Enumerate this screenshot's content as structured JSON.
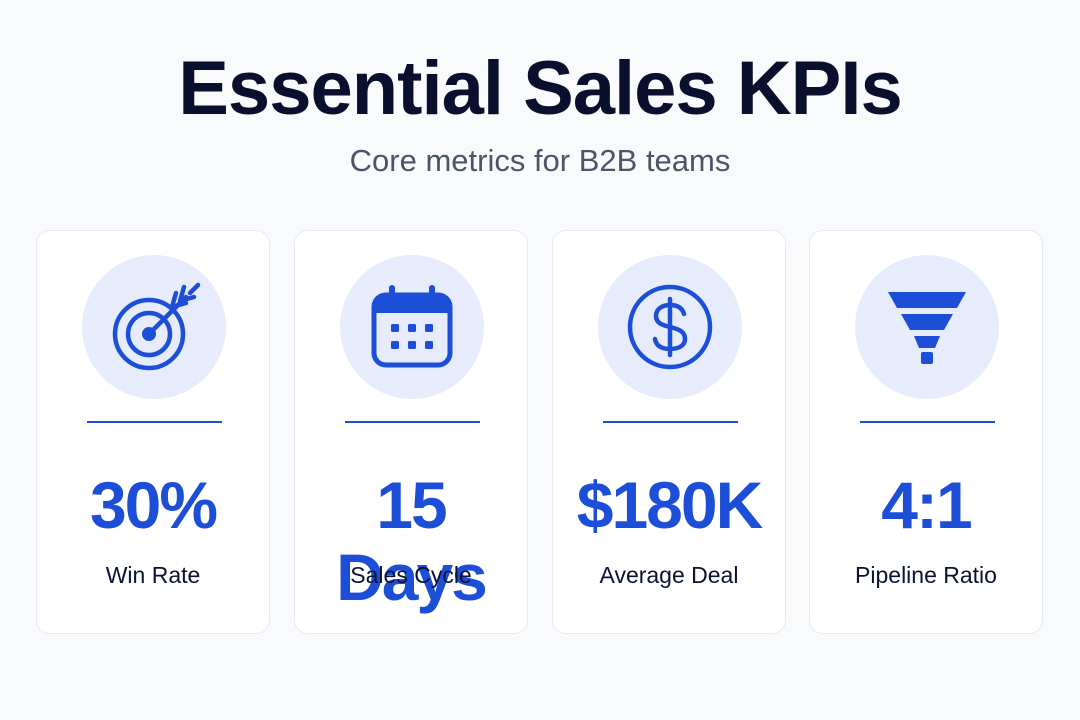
{
  "header": {
    "title": "Essential Sales KPIs",
    "subtitle": "Core metrics for B2B teams"
  },
  "colors": {
    "accent": "#1d4ed8",
    "icon_bg": "#e6ecfb",
    "title": "#0a0f2e",
    "subtitle": "#4a5568",
    "card_border": "#e6eaf4"
  },
  "cards": [
    {
      "icon": "target-arrow-icon",
      "value": "30%",
      "label": "Win Rate"
    },
    {
      "icon": "calendar-icon",
      "value": "15 Days",
      "label": "Sales Cycle"
    },
    {
      "icon": "dollar-coin-icon",
      "value": "$180K",
      "label": "Average Deal"
    },
    {
      "icon": "funnel-icon",
      "value": "4:1",
      "label": "Pipeline Ratio"
    }
  ]
}
